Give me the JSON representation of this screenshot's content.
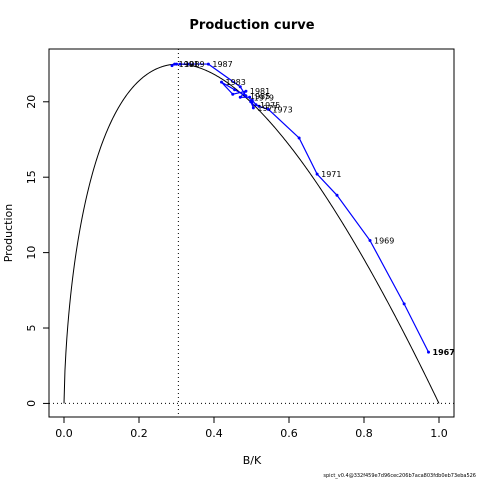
{
  "chart_data": {
    "type": "line",
    "title": "Production curve",
    "xlabel": "B/K",
    "ylabel": "Production",
    "xlim": [
      -0.04,
      1.04
    ],
    "ylim": [
      -0.9,
      23.5
    ],
    "x_ticks": [
      0.0,
      0.2,
      0.4,
      0.6,
      0.8,
      1.0
    ],
    "x_tick_labels": [
      "0.0",
      "0.2",
      "0.4",
      "0.6",
      "0.8",
      "1.0"
    ],
    "y_ticks": [
      0,
      5,
      10,
      15,
      20
    ],
    "y_tick_labels": [
      "0",
      "5",
      "10",
      "15",
      "20"
    ],
    "grid": false,
    "reference_lines": {
      "bmsy_over_k": 0.305,
      "zero_production": 0
    },
    "curve": {
      "name": "",
      "color": "#000000",
      "peak_x": 0.305,
      "peak_y": 22.5
    },
    "series": [
      {
        "name": "",
        "color": "#0000ff",
        "points": [
          {
            "year": "1967",
            "x": 0.972,
            "y": 3.4
          },
          {
            "year": "",
            "x": 0.907,
            "y": 6.6
          },
          {
            "year": "1969",
            "x": 0.816,
            "y": 10.8
          },
          {
            "year": "",
            "x": 0.728,
            "y": 13.8
          },
          {
            "year": "1971",
            "x": 0.675,
            "y": 15.2
          },
          {
            "year": "",
            "x": 0.627,
            "y": 17.6
          },
          {
            "year": "1973",
            "x": 0.545,
            "y": 19.5
          },
          {
            "year": "",
            "x": 0.52,
            "y": 19.7
          },
          {
            "year": "1975",
            "x": 0.512,
            "y": 19.8
          },
          {
            "year": "",
            "x": 0.502,
            "y": 20.1
          },
          {
            "year": "1977",
            "x": 0.505,
            "y": 19.6
          },
          {
            "year": "",
            "x": 0.498,
            "y": 20.0
          },
          {
            "year": "1979",
            "x": 0.495,
            "y": 20.3
          },
          {
            "year": "",
            "x": 0.47,
            "y": 20.3
          },
          {
            "year": "1981",
            "x": 0.485,
            "y": 20.7
          },
          {
            "year": "",
            "x": 0.45,
            "y": 20.5
          },
          {
            "year": "1983",
            "x": 0.42,
            "y": 21.3
          },
          {
            "year": "",
            "x": 0.455,
            "y": 20.8
          },
          {
            "year": "1985",
            "x": 0.485,
            "y": 20.4
          },
          {
            "year": "",
            "x": 0.47,
            "y": 21.0
          },
          {
            "year": "1987",
            "x": 0.385,
            "y": 22.5
          },
          {
            "year": "",
            "x": 0.33,
            "y": 22.5
          },
          {
            "year": "1989",
            "x": 0.31,
            "y": 22.5
          },
          {
            "year": "",
            "x": 0.3,
            "y": 22.5
          },
          {
            "year": "1991",
            "x": 0.295,
            "y": 22.5
          },
          {
            "year": "",
            "x": 0.288,
            "y": 22.4
          }
        ],
        "highlight_year": "1967"
      }
    ],
    "footnote": "spict_v0.4@332f459e7d96cec206b7aca803fdb0eb73eba526"
  }
}
